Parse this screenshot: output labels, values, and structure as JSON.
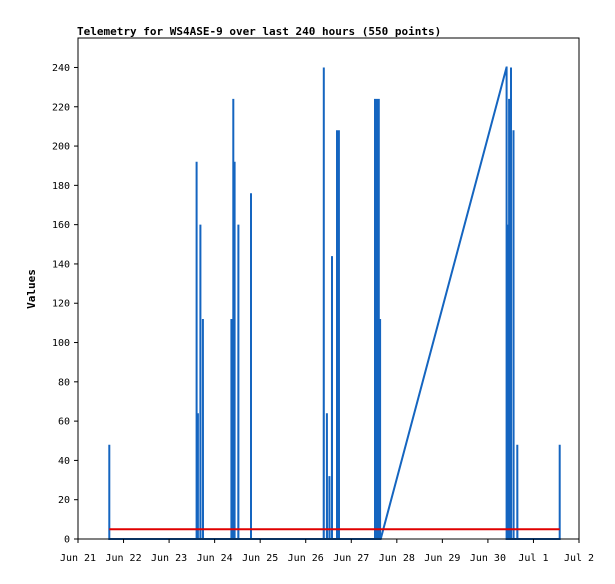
{
  "chart_data": {
    "type": "line",
    "title": "Telemetry for WS4ASE-9 over last 240 hours (550 points)",
    "xlabel": "",
    "ylabel": "Values",
    "xlim": [
      "2024-06-21T00:00",
      "2024-07-02T00:00"
    ],
    "ylim": [
      0,
      255
    ],
    "grid": false,
    "legend": "none",
    "x_ticks": [
      "Jun 21",
      "Jun 22",
      "Jun 23",
      "Jun 24",
      "Jun 25",
      "Jun 26",
      "Jun 27",
      "Jun 28",
      "Jun 29",
      "Jun 30",
      "Jul 1",
      "Jul 2"
    ],
    "y_ticks": [
      0,
      20,
      40,
      60,
      80,
      100,
      120,
      140,
      160,
      180,
      200,
      220,
      240
    ],
    "colors": {
      "series": "#1565c0",
      "baseline": "#e00000"
    },
    "series": [
      {
        "x": [
          "2024-06-21T16:29",
          "2024-06-21T16:30",
          "2024-06-21T16:31",
          "2024-06-23T14:29",
          "2024-06-23T14:30",
          "2024-06-23T14:31",
          "2024-06-23T15:09",
          "2024-06-23T15:10",
          "2024-06-23T15:11",
          "2024-06-23T16:29",
          "2024-06-23T16:30",
          "2024-06-23T16:31",
          "2024-06-23T17:49",
          "2024-06-23T17:50",
          "2024-06-23T17:51",
          "2024-06-24T08:49",
          "2024-06-24T08:50",
          "2024-06-24T08:51",
          "2024-06-24T09:49",
          "2024-06-24T09:50",
          "2024-06-24T09:51",
          "2024-06-24T10:29",
          "2024-06-24T10:30",
          "2024-06-24T10:31",
          "2024-06-24T12:29",
          "2024-06-24T12:30",
          "2024-06-24T12:31",
          "2024-06-24T19:09",
          "2024-06-24T19:10",
          "2024-06-24T19:11",
          "2024-06-26T09:29",
          "2024-06-26T09:30",
          "2024-06-26T09:31",
          "2024-06-26T11:09",
          "2024-06-26T11:10",
          "2024-06-26T11:11",
          "2024-06-26T12:29",
          "2024-06-26T12:30",
          "2024-06-26T12:31",
          "2024-06-26T13:49",
          "2024-06-26T13:50",
          "2024-06-26T13:51",
          "2024-06-26T16:29",
          "2024-06-26T16:30",
          "2024-06-26T16:31",
          "2024-06-26T17:29",
          "2024-06-26T17:30",
          "2024-06-26T17:31",
          "2024-06-27T12:29",
          "2024-06-27T12:30",
          "2024-06-27T12:31",
          "2024-06-27T13:29",
          "2024-06-27T13:30",
          "2024-06-27T13:31",
          "2024-06-27T14:29",
          "2024-06-27T14:30",
          "2024-06-27T14:31",
          "2024-06-27T15:09",
          "2024-06-27T15:10",
          "2024-06-27T15:11",
          "2024-06-27T15:29",
          "2024-06-30T09:49",
          "2024-06-30T09:50",
          "2024-06-30T09:51",
          "2024-06-30T10:29",
          "2024-06-30T10:30",
          "2024-06-30T10:31",
          "2024-06-30T11:09",
          "2024-06-30T11:10",
          "2024-06-30T11:11",
          "2024-06-30T12:09",
          "2024-06-30T12:10",
          "2024-06-30T12:11",
          "2024-06-30T13:29",
          "2024-06-30T13:30",
          "2024-06-30T13:31",
          "2024-06-30T15:29",
          "2024-06-30T15:30",
          "2024-06-30T15:31",
          "2024-07-01T13:49",
          "2024-07-01T13:50",
          "2024-07-01T13:51"
        ],
        "y": [
          0,
          48,
          0,
          0,
          192,
          0,
          0,
          64,
          0,
          0,
          160,
          0,
          0,
          112,
          0,
          0,
          112,
          0,
          0,
          224,
          0,
          0,
          192,
          0,
          0,
          160,
          0,
          0,
          176,
          0,
          0,
          240,
          0,
          0,
          64,
          0,
          0,
          32,
          0,
          0,
          144,
          0,
          0,
          208,
          0,
          0,
          208,
          0,
          0,
          224,
          0,
          0,
          224,
          0,
          0,
          224,
          0,
          0,
          112,
          0,
          0,
          240,
          240,
          0,
          0,
          160,
          0,
          0,
          224,
          0,
          0,
          240,
          0,
          0,
          208,
          0,
          0,
          48,
          0,
          0,
          48,
          0
        ]
      },
      {
        "x": [
          "2024-06-21T16:30",
          "2024-07-01T13:50"
        ],
        "y": [
          5,
          5
        ]
      }
    ]
  }
}
